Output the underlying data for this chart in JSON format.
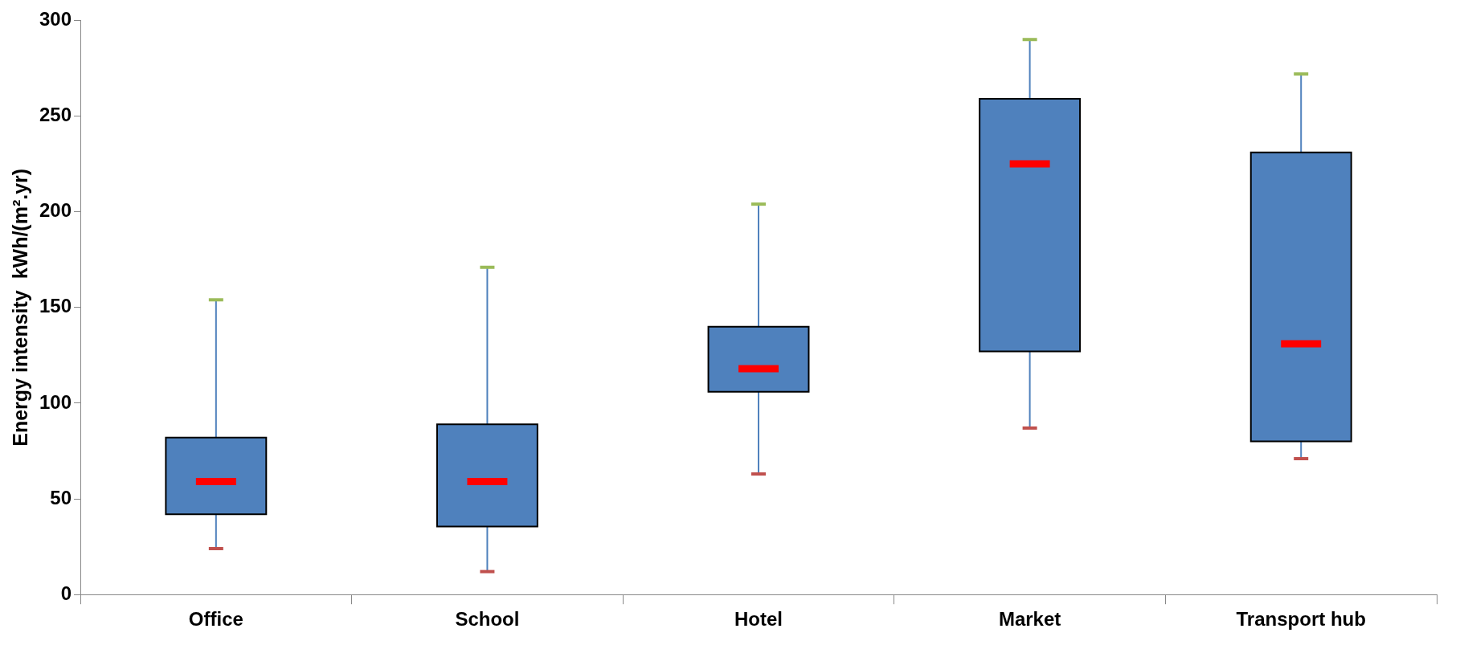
{
  "chart_data": {
    "type": "box",
    "ylabel": "Energy intensity  kWh/(m².yr)",
    "categories": [
      "Office",
      "School",
      "Hotel",
      "Market",
      "Transport hub"
    ],
    "color": "#4f81bd",
    "boxes": [
      {
        "low": 24,
        "q1": 42,
        "median": 59,
        "q3": 82,
        "high": 154
      },
      {
        "low": 12,
        "q1": 35.5,
        "median": 59,
        "q3": 89,
        "high": 171
      },
      {
        "low": 63,
        "q1": 106,
        "median": 118,
        "q3": 140,
        "high": 204
      },
      {
        "low": 87,
        "q1": 127,
        "median": 225,
        "q3": 259,
        "high": 290
      },
      {
        "low": 71,
        "q1": 80,
        "median": 131,
        "q3": 231,
        "high": 272
      }
    ],
    "ylim": [
      0,
      300
    ],
    "yticks": [
      0,
      50,
      100,
      150,
      200,
      250,
      300
    ]
  }
}
